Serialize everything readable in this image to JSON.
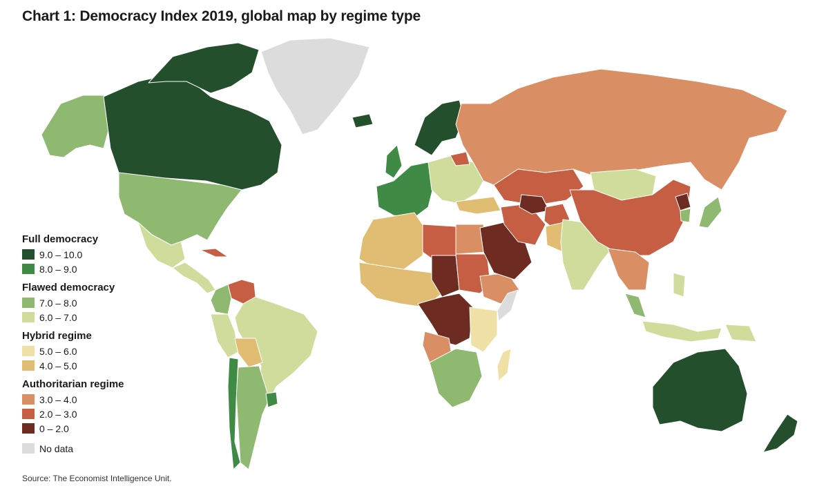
{
  "title": "Chart 1: Democracy Index 2019, global map by regime type",
  "source": "Source: The Economist Intelligence Unit.",
  "legend": {
    "groups": [
      {
        "title": "Full democracy",
        "items": [
          {
            "label": "9.0 – 10.0",
            "color": "#244f2d"
          },
          {
            "label": "8.0 – 9.0",
            "color": "#3f8a45"
          }
        ]
      },
      {
        "title": "Flawed democracy",
        "items": [
          {
            "label": "7.0 – 8.0",
            "color": "#8fb870"
          },
          {
            "label": "6.0 – 7.0",
            "color": "#cfdc9b"
          }
        ]
      },
      {
        "title": "Hybrid regime",
        "items": [
          {
            "label": "5.0 – 6.0",
            "color": "#efe0a6"
          },
          {
            "label": "4.0 – 5.0",
            "color": "#e0bd72"
          }
        ]
      },
      {
        "title": "Authoritarian regime",
        "items": [
          {
            "label": "3.0 – 4.0",
            "color": "#d98e63"
          },
          {
            "label": "2.0 – 3.0",
            "color": "#c65e43"
          },
          {
            "label": "0 – 2.0",
            "color": "#6e2b22"
          }
        ]
      }
    ],
    "no_data": {
      "label": "No data",
      "color": "#dcdcdc"
    }
  },
  "colors": {
    "ocean": "#ffffff",
    "border": "#ffffff",
    "coast": "#6a9ac4"
  },
  "regions": [
    {
      "name": "canada",
      "color": "#244f2d"
    },
    {
      "name": "arctic-islands",
      "color": "#244f2d"
    },
    {
      "name": "greenland",
      "color": "#dcdcdc"
    },
    {
      "name": "alaska",
      "color": "#8fb870"
    },
    {
      "name": "usa",
      "color": "#8fb870"
    },
    {
      "name": "mexico",
      "color": "#cfdc9b"
    },
    {
      "name": "central-america",
      "color": "#cfdc9b"
    },
    {
      "name": "cuba",
      "color": "#c65e43"
    },
    {
      "name": "venezuela",
      "color": "#c65e43"
    },
    {
      "name": "colombia",
      "color": "#8fb870"
    },
    {
      "name": "brazil",
      "color": "#cfdc9b"
    },
    {
      "name": "peru",
      "color": "#cfdc9b"
    },
    {
      "name": "bolivia",
      "color": "#e0bd72"
    },
    {
      "name": "argentina",
      "color": "#8fb870"
    },
    {
      "name": "chile",
      "color": "#3f8a45"
    },
    {
      "name": "uruguay",
      "color": "#3f8a45"
    },
    {
      "name": "iceland",
      "color": "#244f2d"
    },
    {
      "name": "scandinavia",
      "color": "#244f2d"
    },
    {
      "name": "uk",
      "color": "#3f8a45"
    },
    {
      "name": "western-europe",
      "color": "#3f8a45"
    },
    {
      "name": "eastern-europe",
      "color": "#cfdc9b"
    },
    {
      "name": "belarus",
      "color": "#c65e43"
    },
    {
      "name": "russia",
      "color": "#d98e63"
    },
    {
      "name": "turkey",
      "color": "#e0bd72"
    },
    {
      "name": "north-africa",
      "color": "#e0bd72"
    },
    {
      "name": "libya",
      "color": "#c65e43"
    },
    {
      "name": "egypt",
      "color": "#d98e63"
    },
    {
      "name": "west-africa",
      "color": "#e0bd72"
    },
    {
      "name": "chad-sudan",
      "color": "#6e2b22"
    },
    {
      "name": "sudan",
      "color": "#c65e43"
    },
    {
      "name": "ethiopia",
      "color": "#d98e63"
    },
    {
      "name": "somalia",
      "color": "#dcdcdc"
    },
    {
      "name": "central-africa",
      "color": "#6e2b22"
    },
    {
      "name": "east-africa",
      "color": "#efe0a6"
    },
    {
      "name": "angola",
      "color": "#d98e63"
    },
    {
      "name": "southern-africa",
      "color": "#8fb870"
    },
    {
      "name": "madagascar",
      "color": "#efe0a6"
    },
    {
      "name": "arabia",
      "color": "#6e2b22"
    },
    {
      "name": "iran",
      "color": "#c65e43"
    },
    {
      "name": "central-asia",
      "color": "#c65e43"
    },
    {
      "name": "turkmenistan",
      "color": "#6e2b22"
    },
    {
      "name": "afghanistan",
      "color": "#c65e43"
    },
    {
      "name": "pakistan",
      "color": "#e0bd72"
    },
    {
      "name": "india",
      "color": "#cfdc9b"
    },
    {
      "name": "mongolia",
      "color": "#cfdc9b"
    },
    {
      "name": "china",
      "color": "#c65e43"
    },
    {
      "name": "north-korea",
      "color": "#6e2b22"
    },
    {
      "name": "south-korea",
      "color": "#8fb870"
    },
    {
      "name": "japan",
      "color": "#8fb870"
    },
    {
      "name": "southeast-asia",
      "color": "#d98e63"
    },
    {
      "name": "malaysia",
      "color": "#8fb870"
    },
    {
      "name": "indonesia",
      "color": "#cfdc9b"
    },
    {
      "name": "philippines",
      "color": "#cfdc9b"
    },
    {
      "name": "papua-new-guinea",
      "color": "#cfdc9b"
    },
    {
      "name": "australia",
      "color": "#244f2d"
    },
    {
      "name": "new-zealand",
      "color": "#244f2d"
    }
  ]
}
